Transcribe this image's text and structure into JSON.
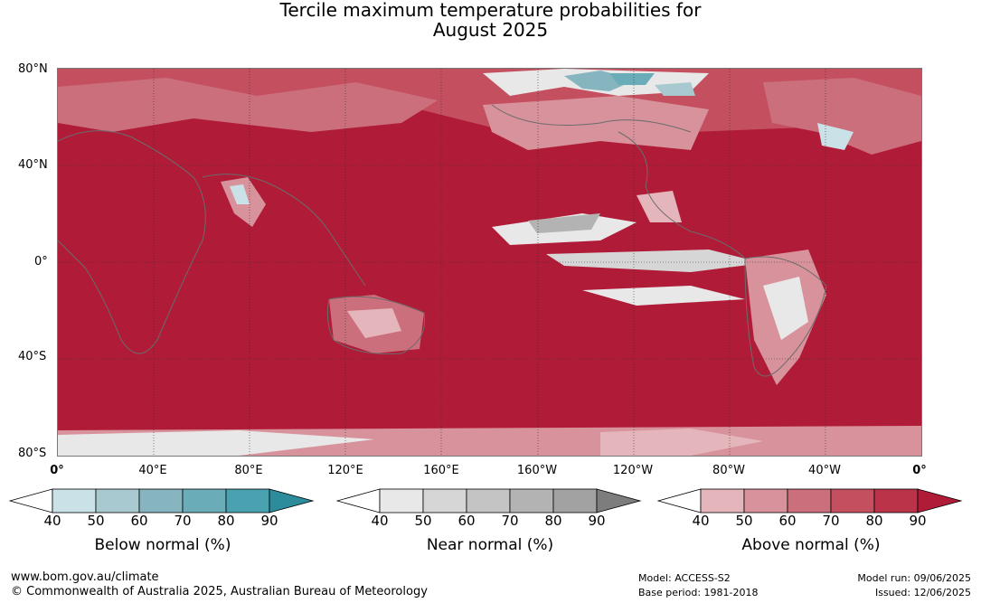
{
  "title_line1": "Tercile maximum temperature probabilities for",
  "title_line2": "August 2025",
  "lat_labels": [
    "80°N",
    "40°N",
    "0°",
    "40°S",
    "80°S"
  ],
  "lon_labels": [
    "0°",
    "40°E",
    "80°E",
    "120°E",
    "160°E",
    "160°W",
    "120°W",
    "80°W",
    "40°W",
    "0°"
  ],
  "colorbars": [
    {
      "label": "Below normal (%)",
      "ticks": [
        "40",
        "50",
        "60",
        "70",
        "80",
        "90"
      ],
      "colors": [
        "#ffffff",
        "#c9e1e7",
        "#a8c9cf",
        "#87b5bf",
        "#6aadb8",
        "#4aa2b0",
        "#2c8c9c"
      ]
    },
    {
      "label": "Near normal (%)",
      "ticks": [
        "40",
        "50",
        "60",
        "70",
        "80",
        "90"
      ],
      "colors": [
        "#ffffff",
        "#e8e8e8",
        "#d6d6d6",
        "#c4c4c4",
        "#b3b3b3",
        "#a2a2a2",
        "#7d7d7d"
      ]
    },
    {
      "label": "Above normal (%)",
      "ticks": [
        "40",
        "50",
        "60",
        "70",
        "80",
        "90"
      ],
      "colors": [
        "#ffffff",
        "#e5b5bc",
        "#d8929c",
        "#cc6f7d",
        "#c4505f",
        "#bb3349",
        "#b01c38"
      ]
    }
  ],
  "footer": {
    "website": "www.bom.gov.au/climate",
    "copyright": "© Commonwealth of Australia 2025, Australian Bureau of Meteorology",
    "model": "Model: ACCESS-S2",
    "base_period": "Base period: 1981-2018",
    "model_run": "Model run: 09/06/2025",
    "issued": "Issued: 12/06/2025"
  }
}
